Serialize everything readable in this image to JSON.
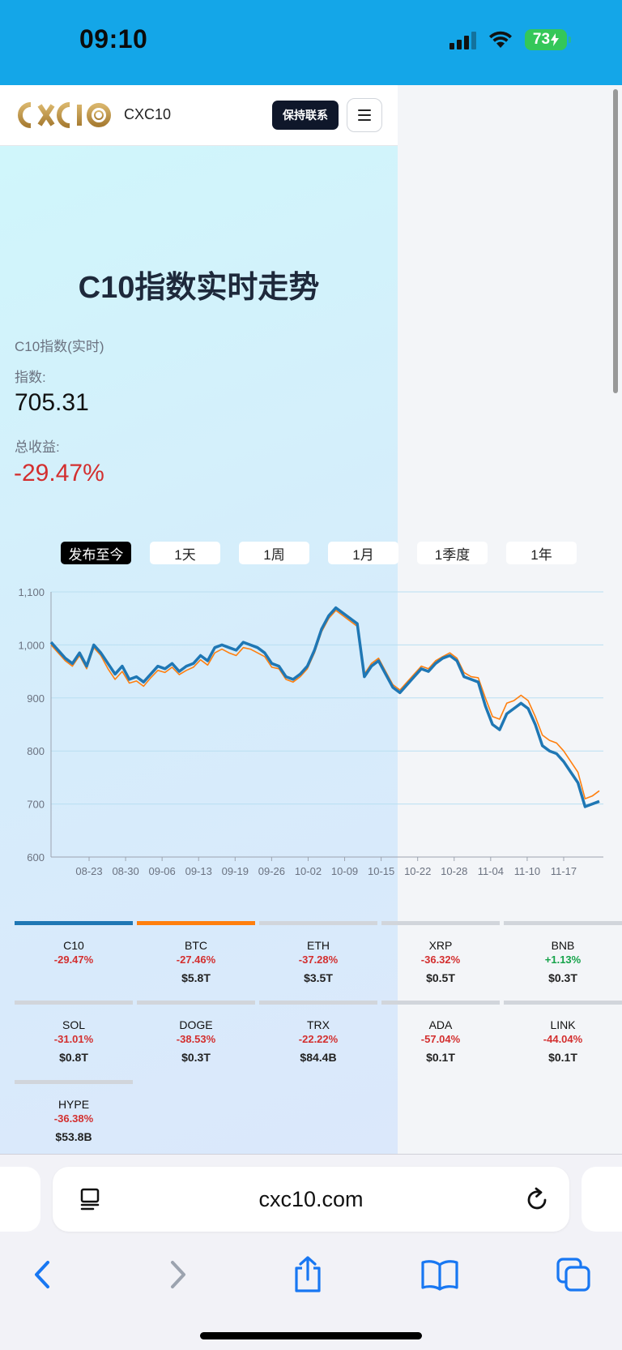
{
  "status_bar": {
    "time": "09:10",
    "battery": "73"
  },
  "header": {
    "brand": "CXC10",
    "logo_text": "CXCIO",
    "contact_button": "保持联系"
  },
  "hero": {
    "title": "C10指数实时走势",
    "index_label": "C10指数(实时)",
    "index_sub_label": "指数:",
    "index_value": "705.31",
    "return_label": "总收益:",
    "return_value": "-29.47%"
  },
  "range_tabs": [
    {
      "label": "发布至今",
      "active": true
    },
    {
      "label": "1天",
      "active": false
    },
    {
      "label": "1周",
      "active": false
    },
    {
      "label": "1月",
      "active": false
    },
    {
      "label": "1季度",
      "active": false
    },
    {
      "label": "1年",
      "active": false
    }
  ],
  "chart_data": {
    "type": "line",
    "y_ticks": [
      "1,100",
      "1,000",
      "900",
      "800",
      "700",
      "600"
    ],
    "ylim": [
      600,
      1100
    ],
    "x_ticks": [
      "08-23",
      "08-30",
      "09-06",
      "09-13",
      "09-19",
      "09-26",
      "10-02",
      "10-09",
      "10-15",
      "10-22",
      "10-28",
      "11-04",
      "11-10",
      "11-17"
    ],
    "grid": true,
    "series": [
      {
        "color": "#1f77b4",
        "values": [
          1005,
          990,
          975,
          965,
          985,
          960,
          1000,
          985,
          965,
          945,
          960,
          935,
          940,
          930,
          945,
          960,
          955,
          965,
          950,
          960,
          965,
          980,
          970,
          995,
          1000,
          995,
          990,
          1005,
          1000,
          995,
          985,
          965,
          960,
          940,
          935,
          945,
          960,
          990,
          1030,
          1055,
          1070,
          1060,
          1050,
          1040,
          940,
          960,
          970,
          945,
          920,
          910,
          925,
          940,
          955,
          950,
          965,
          975,
          980,
          970,
          940,
          935,
          930,
          885,
          850,
          840,
          870,
          880,
          890,
          880,
          850,
          810,
          800,
          795,
          780,
          760,
          740,
          695,
          700,
          705
        ]
      },
      {
        "color": "#ff7f0e",
        "values": [
          1000,
          985,
          970,
          960,
          980,
          955,
          995,
          980,
          955,
          935,
          950,
          928,
          932,
          922,
          938,
          952,
          948,
          958,
          944,
          952,
          958,
          972,
          962,
          985,
          992,
          985,
          980,
          995,
          992,
          985,
          978,
          958,
          955,
          935,
          930,
          940,
          955,
          985,
          1025,
          1050,
          1065,
          1055,
          1045,
          1035,
          945,
          965,
          975,
          950,
          925,
          915,
          930,
          945,
          960,
          955,
          970,
          978,
          985,
          975,
          948,
          940,
          938,
          900,
          865,
          860,
          890,
          895,
          905,
          895,
          865,
          830,
          820,
          815,
          800,
          780,
          760,
          710,
          715,
          725
        ]
      }
    ]
  },
  "assets": [
    {
      "name": "C10",
      "change": "-29.47%",
      "cap": "",
      "bar_color": "#1f77b4",
      "up": false
    },
    {
      "name": "BTC",
      "change": "-27.46%",
      "cap": "$5.8T",
      "bar_color": "#ff7f0e",
      "up": false
    },
    {
      "name": "ETH",
      "change": "-37.28%",
      "cap": "$3.5T",
      "bar_color": "#d1d5db",
      "up": false
    },
    {
      "name": "XRP",
      "change": "-36.32%",
      "cap": "$0.5T",
      "bar_color": "#d1d5db",
      "up": false
    },
    {
      "name": "BNB",
      "change": "+1.13%",
      "cap": "$0.3T",
      "bar_color": "#d1d5db",
      "up": true
    },
    {
      "name": "SOL",
      "change": "-31.01%",
      "cap": "$0.8T",
      "bar_color": "#d1d5db",
      "up": false
    },
    {
      "name": "DOGE",
      "change": "-38.53%",
      "cap": "$0.3T",
      "bar_color": "#d1d5db",
      "up": false
    },
    {
      "name": "TRX",
      "change": "-22.22%",
      "cap": "$84.4B",
      "bar_color": "#d1d5db",
      "up": false
    },
    {
      "name": "ADA",
      "change": "-57.04%",
      "cap": "$0.1T",
      "bar_color": "#d1d5db",
      "up": false
    },
    {
      "name": "LINK",
      "change": "-44.04%",
      "cap": "$0.1T",
      "bar_color": "#d1d5db",
      "up": false
    },
    {
      "name": "HYPE",
      "change": "-36.38%",
      "cap": "$53.8B",
      "bar_color": "#d1d5db",
      "up": false
    }
  ],
  "browser": {
    "url": "cxc10.com"
  }
}
